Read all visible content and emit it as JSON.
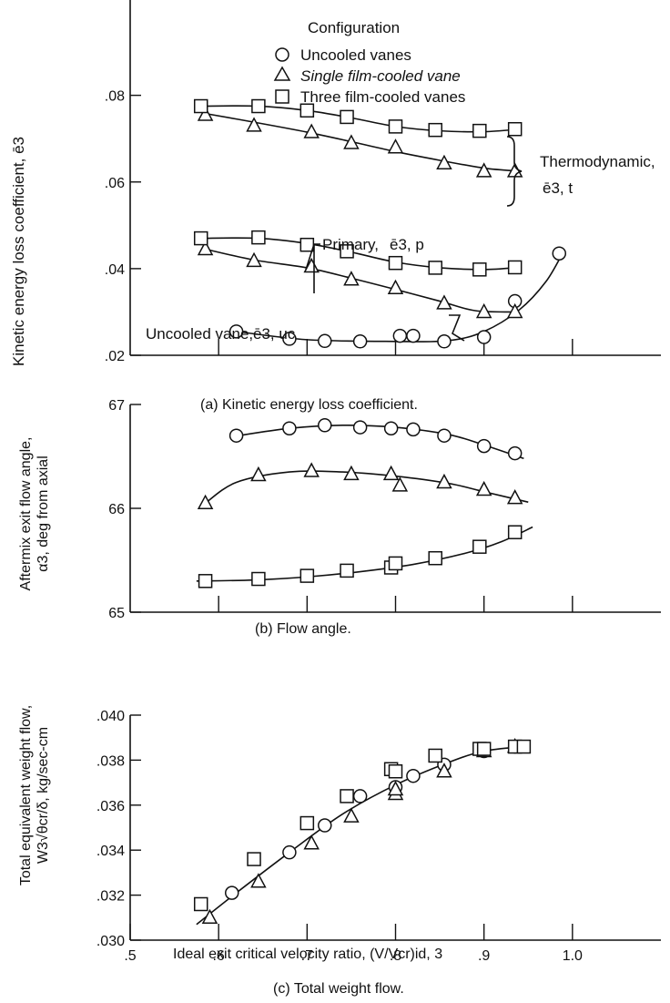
{
  "legend": {
    "title": "Configuration",
    "items": [
      {
        "marker": "circle",
        "label": "Uncooled vanes"
      },
      {
        "marker": "triangle",
        "label": "Single film-cooled vane"
      },
      {
        "marker": "square",
        "label": "Three film-cooled vanes"
      }
    ]
  },
  "chart_data": [
    {
      "type": "scatter",
      "caption": "(a) Kinetic energy loss coefficient.",
      "ylabel": "Kinetic energy loss coefficient, ē3",
      "xlim": [
        0.5,
        1.1
      ],
      "ylim": [
        0.02,
        0.102
      ],
      "x_ticks": [
        0.6,
        0.7,
        0.8,
        0.9,
        1.0
      ],
      "y_ticks": [
        0.02,
        0.04,
        0.06,
        0.08
      ],
      "y_tick_labels": [
        ".02",
        ".04",
        ".06",
        ".08"
      ],
      "series": [
        {
          "marker": "circle",
          "points": [
            [
              0.62,
              0.0255
            ],
            [
              0.68,
              0.0238
            ],
            [
              0.72,
              0.0233
            ],
            [
              0.76,
              0.0232
            ],
            [
              0.805,
              0.0245
            ],
            [
              0.82,
              0.0245
            ],
            [
              0.855,
              0.0232
            ],
            [
              0.9,
              0.0242
            ],
            [
              0.935,
              0.0325
            ],
            [
              0.985,
              0.0435
            ]
          ],
          "fit": [
            [
              0.62,
              0.0255
            ],
            [
              0.7,
              0.0236
            ],
            [
              0.8,
              0.0232
            ],
            [
              0.86,
              0.0234
            ],
            [
              0.9,
              0.0255
            ],
            [
              0.94,
              0.0305
            ],
            [
              0.97,
              0.037
            ],
            [
              0.99,
              0.044
            ]
          ]
        },
        {
          "marker": "triangle",
          "points": [
            [
              0.585,
              0.0445
            ],
            [
              0.64,
              0.0418
            ],
            [
              0.705,
              0.0405
            ],
            [
              0.75,
              0.0375
            ],
            [
              0.8,
              0.0355
            ],
            [
              0.855,
              0.032
            ],
            [
              0.9,
              0.03
            ],
            [
              0.935,
              0.03
            ]
          ],
          "fit": [
            [
              0.585,
              0.0445
            ],
            [
              0.64,
              0.042
            ],
            [
              0.7,
              0.0402
            ],
            [
              0.75,
              0.0378
            ],
            [
              0.8,
              0.0352
            ],
            [
              0.85,
              0.0325
            ],
            [
              0.89,
              0.0303
            ],
            [
              0.935,
              0.03
            ]
          ]
        },
        {
          "marker": "square",
          "points": [
            [
              0.58,
              0.047
            ],
            [
              0.645,
              0.0472
            ],
            [
              0.7,
              0.0455
            ],
            [
              0.745,
              0.044
            ],
            [
              0.8,
              0.0413
            ],
            [
              0.845,
              0.0402
            ],
            [
              0.895,
              0.0398
            ],
            [
              0.935,
              0.0403
            ]
          ],
          "fit": [
            [
              0.58,
              0.047
            ],
            [
              0.645,
              0.047
            ],
            [
              0.7,
              0.0458
            ],
            [
              0.75,
              0.0438
            ],
            [
              0.8,
              0.0415
            ],
            [
              0.85,
              0.0402
            ],
            [
              0.9,
              0.0398
            ],
            [
              0.94,
              0.0403
            ]
          ]
        },
        {
          "marker": "triangle",
          "points": [
            [
              0.585,
              0.0755
            ],
            [
              0.64,
              0.073
            ],
            [
              0.705,
              0.0715
            ],
            [
              0.75,
              0.069
            ],
            [
              0.8,
              0.068
            ],
            [
              0.855,
              0.0643
            ],
            [
              0.9,
              0.0625
            ],
            [
              0.935,
              0.0625
            ]
          ],
          "fit": [
            [
              0.585,
              0.0758
            ],
            [
              0.64,
              0.0738
            ],
            [
              0.7,
              0.0715
            ],
            [
              0.75,
              0.0693
            ],
            [
              0.8,
              0.067
            ],
            [
              0.85,
              0.065
            ],
            [
              0.9,
              0.0632
            ],
            [
              0.94,
              0.0625
            ]
          ]
        },
        {
          "marker": "square",
          "points": [
            [
              0.58,
              0.0775
            ],
            [
              0.645,
              0.0775
            ],
            [
              0.7,
              0.0765
            ],
            [
              0.745,
              0.075
            ],
            [
              0.8,
              0.0728
            ],
            [
              0.845,
              0.072
            ],
            [
              0.895,
              0.0718
            ],
            [
              0.935,
              0.0722
            ]
          ],
          "fit": [
            [
              0.58,
              0.0775
            ],
            [
              0.645,
              0.0775
            ],
            [
              0.7,
              0.0765
            ],
            [
              0.75,
              0.0748
            ],
            [
              0.8,
              0.0728
            ],
            [
              0.85,
              0.0718
            ],
            [
              0.9,
              0.0716
            ],
            [
              0.94,
              0.0722
            ]
          ]
        }
      ],
      "annotations": {
        "thermo_name": "Thermodynamic,",
        "thermo_symbol": "ē3, t",
        "primary_name": "Primary,",
        "primary_symbol": "ē3, p",
        "uncooled_name": "Uncooled vane,",
        "uncooled_symbol": "ē3, uc"
      }
    },
    {
      "type": "scatter",
      "caption": "(b) Flow angle.",
      "ylabel_1": "Aftermix exit flow angle,",
      "ylabel_2": "α3, deg from axial",
      "xlim": [
        0.5,
        1.1
      ],
      "ylim": [
        65,
        67
      ],
      "x_ticks": [
        0.6,
        0.7,
        0.8,
        0.9,
        1.0
      ],
      "y_ticks": [
        65,
        66,
        67
      ],
      "y_tick_labels": [
        "65",
        "66",
        "67"
      ],
      "series": [
        {
          "marker": "circle",
          "points": [
            [
              0.62,
              66.7
            ],
            [
              0.68,
              66.77
            ],
            [
              0.72,
              66.8
            ],
            [
              0.76,
              66.78
            ],
            [
              0.795,
              66.77
            ],
            [
              0.82,
              66.76
            ],
            [
              0.855,
              66.7
            ],
            [
              0.9,
              66.6
            ],
            [
              0.935,
              66.53
            ]
          ],
          "fit": [
            [
              0.615,
              66.69
            ],
            [
              0.68,
              66.77
            ],
            [
              0.74,
              66.8
            ],
            [
              0.8,
              66.78
            ],
            [
              0.86,
              66.71
            ],
            [
              0.9,
              66.61
            ],
            [
              0.945,
              66.48
            ]
          ]
        },
        {
          "marker": "triangle",
          "points": [
            [
              0.585,
              66.05
            ],
            [
              0.645,
              66.32
            ],
            [
              0.705,
              66.36
            ],
            [
              0.75,
              66.33
            ],
            [
              0.795,
              66.33
            ],
            [
              0.805,
              66.22
            ],
            [
              0.855,
              66.25
            ],
            [
              0.9,
              66.18
            ],
            [
              0.935,
              66.1
            ]
          ],
          "fit": [
            [
              0.585,
              66.05
            ],
            [
              0.62,
              66.25
            ],
            [
              0.68,
              66.35
            ],
            [
              0.74,
              66.35
            ],
            [
              0.8,
              66.31
            ],
            [
              0.86,
              66.24
            ],
            [
              0.9,
              66.16
            ],
            [
              0.95,
              66.06
            ]
          ]
        },
        {
          "marker": "square",
          "points": [
            [
              0.585,
              65.3
            ],
            [
              0.645,
              65.32
            ],
            [
              0.7,
              65.35
            ],
            [
              0.745,
              65.4
            ],
            [
              0.795,
              65.43
            ],
            [
              0.8,
              65.47
            ],
            [
              0.845,
              65.52
            ],
            [
              0.895,
              65.63
            ],
            [
              0.935,
              65.77
            ]
          ],
          "fit": [
            [
              0.575,
              65.3
            ],
            [
              0.64,
              65.31
            ],
            [
              0.7,
              65.34
            ],
            [
              0.76,
              65.39
            ],
            [
              0.82,
              65.46
            ],
            [
              0.88,
              65.57
            ],
            [
              0.92,
              65.68
            ],
            [
              0.955,
              65.82
            ]
          ]
        }
      ]
    },
    {
      "type": "scatter",
      "caption": "(c) Total weight flow.",
      "ylabel_1": "Total equivalent weight flow,",
      "ylabel_2": "W3√θcr/δ, kg/sec-cm",
      "xlabel": "Ideal exit critical velocity ratio, (V/Vcr)id, 3",
      "xlim": [
        0.5,
        1.1
      ],
      "ylim": [
        0.03,
        0.04
      ],
      "x_ticks": [
        0.5,
        0.6,
        0.7,
        0.8,
        0.9,
        1.0
      ],
      "x_tick_labels": [
        ".5",
        ".6",
        ".7",
        ".8",
        ".9",
        "1.0"
      ],
      "y_ticks": [
        0.03,
        0.032,
        0.034,
        0.036,
        0.038,
        0.04
      ],
      "y_tick_labels": [
        ".030",
        ".032",
        ".034",
        ".036",
        ".038",
        ".040"
      ],
      "series": [
        {
          "marker": "circle",
          "points": [
            [
              0.615,
              0.0321
            ],
            [
              0.68,
              0.0339
            ],
            [
              0.72,
              0.0351
            ],
            [
              0.76,
              0.0364
            ],
            [
              0.8,
              0.0368
            ],
            [
              0.82,
              0.0373
            ],
            [
              0.855,
              0.0378
            ],
            [
              0.9,
              0.0384
            ],
            [
              0.935,
              0.0386
            ]
          ],
          "fit": [
            [
              0.575,
              0.0307
            ],
            [
              0.62,
              0.0321
            ],
            [
              0.68,
              0.0339
            ],
            [
              0.74,
              0.0356
            ],
            [
              0.8,
              0.0369
            ],
            [
              0.86,
              0.0379
            ],
            [
              0.9,
              0.0384
            ],
            [
              0.945,
              0.0386
            ]
          ]
        },
        {
          "marker": "triangle",
          "points": [
            [
              0.59,
              0.031
            ],
            [
              0.645,
              0.0326
            ],
            [
              0.705,
              0.0343
            ],
            [
              0.75,
              0.0355
            ],
            [
              0.8,
              0.0365
            ],
            [
              0.8,
              0.0367
            ],
            [
              0.855,
              0.0375
            ],
            [
              0.9,
              0.0384
            ],
            [
              0.935,
              0.0386
            ]
          ]
        },
        {
          "marker": "square",
          "points": [
            [
              0.58,
              0.0316
            ],
            [
              0.64,
              0.0336
            ],
            [
              0.7,
              0.0352
            ],
            [
              0.745,
              0.0364
            ],
            [
              0.795,
              0.0376
            ],
            [
              0.8,
              0.0375
            ],
            [
              0.845,
              0.0382
            ],
            [
              0.895,
              0.0385
            ],
            [
              0.9,
              0.0385
            ],
            [
              0.935,
              0.0386
            ],
            [
              0.945,
              0.0386
            ]
          ]
        }
      ]
    }
  ]
}
